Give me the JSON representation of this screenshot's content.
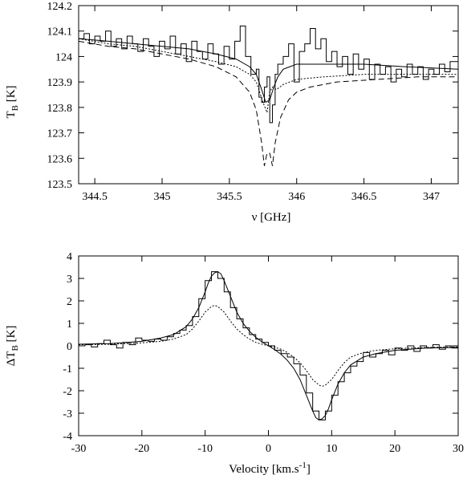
{
  "chart_data": [
    {
      "type": "line",
      "xlabel": "ν [GHz]",
      "ylabel": "T_B [K]",
      "ylabel_main": "T",
      "ylabel_sub": "B",
      "ylabel_unit": " [K]",
      "xlim": [
        344.38,
        347.2
      ],
      "ylim": [
        123.5,
        124.2
      ],
      "xticks": [
        344.5,
        345,
        345.5,
        346,
        346.5,
        347
      ],
      "xtick_labels": [
        "344.5",
        "345",
        "345.5",
        "346",
        "346.5",
        "347"
      ],
      "yticks": [
        123.5,
        123.6,
        123.7,
        123.8,
        123.9,
        124,
        124.1,
        124.2
      ],
      "ytick_labels": [
        "123.5",
        "123.6",
        "123.7",
        "123.8",
        "123.9",
        "124",
        "124.1",
        "124.2"
      ],
      "grid": false,
      "series": [
        {
          "style": "step",
          "x": [
            344.38,
            344.42,
            344.46,
            344.5,
            344.54,
            344.58,
            344.62,
            344.66,
            344.7,
            344.74,
            344.78,
            344.82,
            344.86,
            344.9,
            344.94,
            344.98,
            345.02,
            345.06,
            345.1,
            345.14,
            345.18,
            345.22,
            345.26,
            345.3,
            345.34,
            345.38,
            345.42,
            345.46,
            345.5,
            345.54,
            345.58,
            345.62,
            345.66,
            345.7,
            345.72,
            345.74,
            345.76,
            345.78,
            345.8,
            345.82,
            345.84,
            345.86,
            345.9,
            345.94,
            345.98,
            346.02,
            346.06,
            346.1,
            346.14,
            346.18,
            346.22,
            346.26,
            346.3,
            346.34,
            346.38,
            346.42,
            346.46,
            346.5,
            346.54,
            346.58,
            346.62,
            346.66,
            346.7,
            346.74,
            346.78,
            346.82,
            346.86,
            346.9,
            346.94,
            346.98,
            347.02,
            347.06,
            347.1,
            347.14,
            347.2
          ],
          "y": [
            124.07,
            124.09,
            124.05,
            124.08,
            124.06,
            124.1,
            124.04,
            124.07,
            124.03,
            124.08,
            124.05,
            124.02,
            124.07,
            124.04,
            124.0,
            124.06,
            124.03,
            124.08,
            124.01,
            124.05,
            123.98,
            124.06,
            124.02,
            123.99,
            124.05,
            124.01,
            123.97,
            124.04,
            123.99,
            124.06,
            124.12,
            124.0,
            123.93,
            123.95,
            123.84,
            123.82,
            123.88,
            123.92,
            123.74,
            123.81,
            123.93,
            123.97,
            124.0,
            124.05,
            123.9,
            124.02,
            124.05,
            124.11,
            124.03,
            124.07,
            123.98,
            124.02,
            123.96,
            124.0,
            123.93,
            124.01,
            123.95,
            123.99,
            123.91,
            123.97,
            123.93,
            123.96,
            123.9,
            123.95,
            123.92,
            123.97,
            123.93,
            123.96,
            123.91,
            123.95,
            123.93,
            123.97,
            123.94,
            123.98,
            123.98
          ]
        },
        {
          "style": "solid",
          "x": [
            344.38,
            344.6,
            344.8,
            345.0,
            345.2,
            345.4,
            345.55,
            345.65,
            345.7,
            345.74,
            345.77,
            345.8,
            345.83,
            345.86,
            345.9,
            345.95,
            346.0,
            346.2,
            346.5,
            346.8,
            347.2
          ],
          "y": [
            124.07,
            124.06,
            124.05,
            124.04,
            124.03,
            124.01,
            123.99,
            123.96,
            123.93,
            123.87,
            123.82,
            123.83,
            123.88,
            123.92,
            123.95,
            123.96,
            123.97,
            123.97,
            123.97,
            123.96,
            123.95
          ]
        },
        {
          "style": "dotted",
          "x": [
            344.38,
            344.6,
            344.8,
            345.0,
            345.2,
            345.4,
            345.55,
            345.65,
            345.7,
            345.75,
            345.78,
            345.8,
            345.82,
            345.85,
            345.9,
            345.95,
            346.0,
            346.2,
            346.5,
            346.8,
            347.2
          ],
          "y": [
            124.07,
            124.05,
            124.04,
            124.02,
            124.0,
            123.98,
            123.96,
            123.93,
            123.9,
            123.82,
            123.78,
            123.86,
            123.88,
            123.87,
            123.89,
            123.9,
            123.91,
            123.92,
            123.93,
            123.93,
            123.93
          ]
        },
        {
          "style": "dashed",
          "x": [
            344.38,
            344.6,
            344.8,
            345.0,
            345.2,
            345.4,
            345.55,
            345.65,
            345.7,
            345.74,
            345.76,
            345.78,
            345.8,
            345.82,
            345.84,
            345.88,
            345.94,
            346.0,
            346.1,
            346.3,
            346.6,
            346.9,
            347.2
          ],
          "y": [
            124.06,
            124.04,
            124.03,
            124.01,
            123.99,
            123.96,
            123.92,
            123.86,
            123.79,
            123.66,
            123.57,
            123.62,
            123.62,
            123.57,
            123.66,
            123.76,
            123.83,
            123.86,
            123.88,
            123.9,
            123.91,
            123.92,
            123.92
          ]
        }
      ]
    },
    {
      "type": "line",
      "xlabel": "Velocity [km.s-1]",
      "xlabel_main": "Velocity [km.s",
      "xlabel_sup": "-1",
      "xlabel_end": "]",
      "ylabel": "ΔT_B [K]",
      "ylabel_main": "ΔT",
      "ylabel_sub": "B",
      "ylabel_unit": " [K]",
      "xlim": [
        -30,
        30
      ],
      "ylim": [
        -4,
        4
      ],
      "xticks": [
        -30,
        -20,
        -10,
        0,
        10,
        20,
        30
      ],
      "xtick_labels": [
        "-30",
        "-20",
        "-10",
        "0",
        "10",
        "20",
        "30"
      ],
      "yticks": [
        -4,
        -3,
        -2,
        -1,
        0,
        1,
        2,
        3,
        4
      ],
      "ytick_labels": [
        "-4",
        "-3",
        "-2",
        "-1",
        "0",
        "1",
        "2",
        "3",
        "4"
      ],
      "grid": false,
      "series": [
        {
          "style": "step",
          "x": [
            -30,
            -29,
            -28,
            -27,
            -26,
            -25,
            -24,
            -23,
            -22,
            -21,
            -20,
            -19,
            -18,
            -17,
            -16,
            -15,
            -14,
            -13,
            -12,
            -11,
            -10,
            -9,
            -8,
            -7,
            -6,
            -5,
            -4,
            -3,
            -2,
            -1,
            0,
            1,
            2,
            3,
            4,
            5,
            6,
            7,
            8,
            9,
            10,
            11,
            12,
            13,
            14,
            15,
            16,
            17,
            18,
            19,
            20,
            21,
            22,
            23,
            24,
            25,
            26,
            27,
            28,
            29,
            30
          ],
          "y": [
            0.0,
            0.05,
            -0.05,
            0.1,
            0.25,
            0.05,
            -0.1,
            0.15,
            0.05,
            0.35,
            0.25,
            0.2,
            0.3,
            0.25,
            0.4,
            0.55,
            0.7,
            0.9,
            1.3,
            2.1,
            2.9,
            3.3,
            3.0,
            2.4,
            1.7,
            1.2,
            0.8,
            0.5,
            0.3,
            0.15,
            0.0,
            -0.2,
            -0.35,
            -0.5,
            -0.8,
            -1.3,
            -2.1,
            -2.9,
            -3.3,
            -2.9,
            -2.2,
            -1.6,
            -1.2,
            -0.9,
            -0.7,
            -0.3,
            -0.5,
            -0.35,
            -0.2,
            -0.4,
            -0.1,
            -0.2,
            0.0,
            -0.25,
            0.0,
            -0.1,
            0.05,
            -0.15,
            0.0,
            -0.1,
            0.0
          ]
        },
        {
          "style": "solid",
          "x": [
            -30,
            -25,
            -20,
            -17,
            -15,
            -13,
            -12,
            -11,
            -10,
            -9.5,
            -9,
            -8.5,
            -8,
            -7.5,
            -7,
            -6,
            -5,
            -4,
            -3,
            -2,
            -1,
            0,
            1,
            2,
            3,
            4,
            5,
            6,
            7,
            7.5,
            8,
            8.5,
            9,
            9.5,
            10,
            11,
            12,
            13,
            15,
            17,
            20,
            25,
            30
          ],
          "y": [
            0.07,
            0.1,
            0.2,
            0.35,
            0.5,
            0.85,
            1.2,
            1.7,
            2.4,
            2.8,
            3.1,
            3.25,
            3.3,
            3.2,
            2.9,
            2.2,
            1.5,
            1.0,
            0.65,
            0.38,
            0.17,
            0.0,
            -0.17,
            -0.38,
            -0.65,
            -1.0,
            -1.5,
            -2.2,
            -2.9,
            -3.2,
            -3.3,
            -3.25,
            -3.1,
            -2.8,
            -2.4,
            -1.7,
            -1.2,
            -0.85,
            -0.5,
            -0.35,
            -0.2,
            -0.1,
            -0.07
          ]
        },
        {
          "style": "dotted",
          "x": [
            -30,
            -25,
            -20,
            -17,
            -15,
            -13,
            -12,
            -11,
            -10,
            -9,
            -8.5,
            -8,
            -7,
            -6,
            -5,
            -4,
            -3,
            -2,
            -1,
            0,
            1,
            2,
            3,
            4,
            5,
            6,
            7,
            8,
            8.5,
            9,
            10,
            11,
            12,
            13,
            15,
            17,
            20,
            25,
            30
          ],
          "y": [
            0.05,
            0.07,
            0.13,
            0.2,
            0.3,
            0.5,
            0.75,
            1.1,
            1.5,
            1.75,
            1.8,
            1.75,
            1.5,
            1.1,
            0.75,
            0.5,
            0.3,
            0.15,
            0.07,
            0.0,
            -0.07,
            -0.15,
            -0.3,
            -0.5,
            -0.75,
            -1.1,
            -1.5,
            -1.75,
            -1.8,
            -1.75,
            -1.5,
            -1.1,
            -0.75,
            -0.5,
            -0.3,
            -0.2,
            -0.13,
            -0.07,
            -0.05
          ]
        }
      ]
    }
  ]
}
